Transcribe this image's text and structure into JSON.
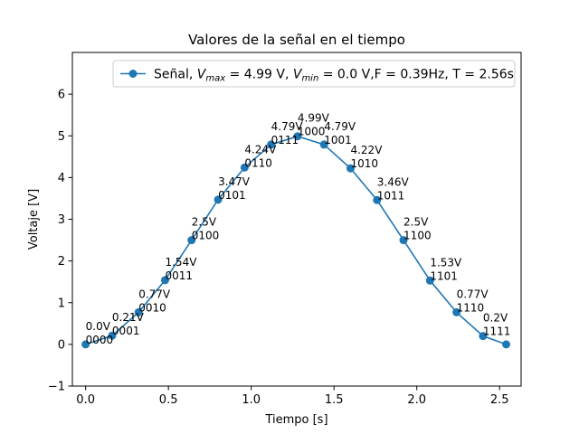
{
  "chart_data": {
    "type": "line",
    "title": "Valores de la señal en el tiempo",
    "xlabel": "Tiempo [s]",
    "ylabel": "Voltaje [V]",
    "xlim": [
      -0.08,
      2.63
    ],
    "ylim": [
      -1,
      7
    ],
    "xticks": [
      0.0,
      0.5,
      1.0,
      1.5,
      2.0,
      2.5
    ],
    "xtick_labels": [
      "0.0",
      "0.5",
      "1.0",
      "1.5",
      "2.0",
      "2.5"
    ],
    "yticks": [
      -1,
      0,
      1,
      2,
      3,
      4,
      5,
      6
    ],
    "ytick_labels": [
      "−1",
      "0",
      "1",
      "2",
      "3",
      "4",
      "5",
      "6"
    ],
    "grid": false,
    "legend_position": "top-right",
    "color": "#1f77b4",
    "series": [
      {
        "legend": {
          "prefix": "Señal, ",
          "vmax_symbol": "V",
          "vmax_sub": "max",
          "vmax_text": " = 4.99 V, ",
          "vmin_symbol": "V",
          "vmin_sub": "min",
          "vmin_text": " = 0.0 V,F = 0.39Hz, T = 2.56s"
        },
        "x": [
          0.0,
          0.16,
          0.32,
          0.48,
          0.64,
          0.8,
          0.96,
          1.12,
          1.28,
          1.44,
          1.6,
          1.76,
          1.92,
          2.08,
          2.24,
          2.4,
          2.54
        ],
        "y": [
          0.0,
          0.21,
          0.77,
          1.54,
          2.5,
          3.47,
          4.24,
          4.79,
          4.99,
          4.79,
          4.22,
          3.46,
          2.5,
          1.53,
          0.77,
          0.2,
          0.0
        ],
        "labels": [
          {
            "value": "0.0V",
            "code": "0000"
          },
          {
            "value": "0.21V",
            "code": "0001"
          },
          {
            "value": "0.77V",
            "code": "0010"
          },
          {
            "value": "1.54V",
            "code": "0011"
          },
          {
            "value": "2.5V",
            "code": "0100"
          },
          {
            "value": "3.47V",
            "code": "0101"
          },
          {
            "value": "4.24V",
            "code": "0110"
          },
          {
            "value": "4.79V",
            "code": "0111"
          },
          {
            "value": "4.99V",
            "code": "1000"
          },
          {
            "value": "4.79V",
            "code": "1001"
          },
          {
            "value": "4.22V",
            "code": "1010"
          },
          {
            "value": "3.46V",
            "code": "1011"
          },
          {
            "value": "2.5V",
            "code": "1100"
          },
          {
            "value": "1.53V",
            "code": "1101"
          },
          {
            "value": "0.77V",
            "code": "1110"
          },
          {
            "value": "0.2V",
            "code": "1111"
          },
          null
        ]
      }
    ]
  }
}
